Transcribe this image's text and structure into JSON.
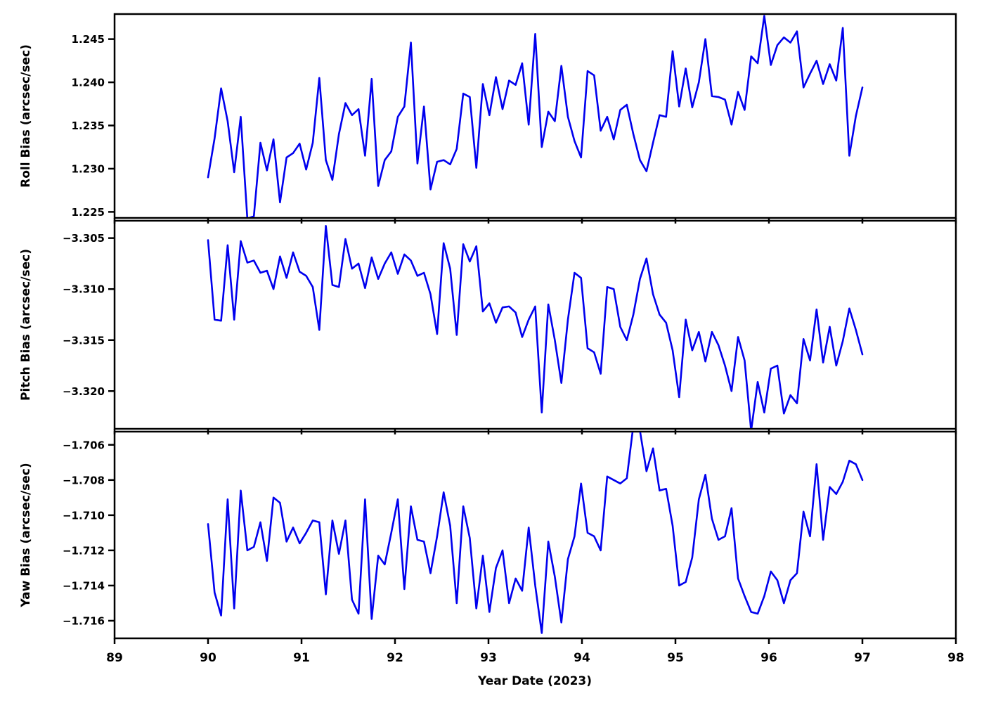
{
  "figure": {
    "background_color": "#ffffff",
    "line_color": "#0000ee",
    "axis_color": "#000000",
    "xlabel": "Year Date (2023)"
  },
  "chart_data": [
    {
      "type": "line",
      "panel": "roll",
      "ylabel": "Roll Bias (arcsec/sec)",
      "legend": "none",
      "grid": false,
      "xlim": [
        89,
        98
      ],
      "ylim": [
        1.2243,
        1.2479
      ],
      "yticks": [
        1.245,
        1.24,
        1.235,
        1.23,
        1.225
      ],
      "ytick_labels": [
        "1.245",
        "1.240",
        "1.235",
        "1.230",
        "1.225"
      ],
      "x_start": 90.0,
      "x_step": 0.07,
      "values": [
        1.229,
        1.2335,
        1.2393,
        1.2355,
        1.2296,
        1.236,
        1.2242,
        1.2245,
        1.233,
        1.2298,
        1.2334,
        1.2261,
        1.2313,
        1.2318,
        1.2329,
        1.2299,
        1.233,
        1.2405,
        1.231,
        1.2287,
        1.234,
        1.2376,
        1.2362,
        1.2369,
        1.2315,
        1.2404,
        1.228,
        1.231,
        1.232,
        1.236,
        1.2372,
        1.2446,
        1.2306,
        1.2372,
        1.2276,
        1.2308,
        1.231,
        1.2305,
        1.2323,
        1.2387,
        1.2383,
        1.2301,
        1.2398,
        1.2362,
        1.2406,
        1.2369,
        1.2402,
        1.2397,
        1.2422,
        1.2351,
        1.2456,
        1.2325,
        1.2366,
        1.2355,
        1.2419,
        1.236,
        1.2332,
        1.2313,
        1.2413,
        1.2408,
        1.2344,
        1.236,
        1.2334,
        1.2368,
        1.2374,
        1.234,
        1.231,
        1.2297,
        1.233,
        1.2362,
        1.236,
        1.2436,
        1.2372,
        1.2416,
        1.2371,
        1.24,
        1.245,
        1.2384,
        1.2383,
        1.238,
        1.2351,
        1.2389,
        1.2368,
        1.243,
        1.2422,
        1.2477,
        1.242,
        1.2443,
        1.2452,
        1.2446,
        1.2459,
        1.2394,
        1.241,
        1.2425,
        1.2398,
        1.2421,
        1.2402,
        1.2463,
        1.2315,
        1.2361,
        1.2394
      ]
    },
    {
      "type": "line",
      "panel": "pitch",
      "ylabel": "Pitch Bias (arcsec/sec)",
      "legend": "none",
      "grid": false,
      "xlim": [
        89,
        98
      ],
      "ylim": [
        -3.3237,
        -3.3033
      ],
      "yticks": [
        -3.305,
        -3.31,
        -3.315,
        -3.32
      ],
      "ytick_labels": [
        "−3.305",
        "−3.310",
        "−3.315",
        "−3.320"
      ],
      "x_start": 90.0,
      "x_step": 0.07,
      "values": [
        -3.3052,
        -3.313,
        -3.3131,
        -3.3057,
        -3.313,
        -3.3053,
        -3.3074,
        -3.3072,
        -3.3084,
        -3.3082,
        -3.31,
        -3.3068,
        -3.3089,
        -3.3064,
        -3.3083,
        -3.3087,
        -3.3098,
        -3.314,
        -3.3038,
        -3.3096,
        -3.3098,
        -3.3051,
        -3.308,
        -3.3075,
        -3.3099,
        -3.3069,
        -3.309,
        -3.3075,
        -3.3064,
        -3.3085,
        -3.3066,
        -3.3072,
        -3.3087,
        -3.3084,
        -3.3105,
        -3.3144,
        -3.3055,
        -3.308,
        -3.3145,
        -3.3056,
        -3.3073,
        -3.3058,
        -3.3122,
        -3.3114,
        -3.3133,
        -3.3118,
        -3.3117,
        -3.3123,
        -3.3147,
        -3.313,
        -3.3117,
        -3.3221,
        -3.3115,
        -3.315,
        -3.3192,
        -3.313,
        -3.3084,
        -3.3089,
        -3.3158,
        -3.3162,
        -3.3183,
        -3.3098,
        -3.31,
        -3.3137,
        -3.315,
        -3.3125,
        -3.309,
        -3.307,
        -3.3105,
        -3.3125,
        -3.3133,
        -3.316,
        -3.3206,
        -3.313,
        -3.316,
        -3.3142,
        -3.3171,
        -3.3142,
        -3.3155,
        -3.3175,
        -3.32,
        -3.3147,
        -3.317,
        -3.3239,
        -3.3191,
        -3.3221,
        -3.3178,
        -3.3175,
        -3.3222,
        -3.3204,
        -3.3212,
        -3.3149,
        -3.317,
        -3.312,
        -3.3172,
        -3.3137,
        -3.3175,
        -3.3151,
        -3.3119,
        -3.314,
        -3.3164
      ]
    },
    {
      "type": "line",
      "panel": "yaw",
      "ylabel": "Yaw Bias (arcsec/sec)",
      "legend": "none",
      "grid": false,
      "xlim": [
        89,
        98
      ],
      "ylim": [
        -1.717,
        -1.70525
      ],
      "yticks": [
        -1.706,
        -1.708,
        -1.71,
        -1.712,
        -1.714,
        -1.716
      ],
      "ytick_labels": [
        "−1.706",
        "−1.708",
        "−1.710",
        "−1.712",
        "−1.714",
        "−1.716"
      ],
      "x_start": 90.0,
      "x_step": 0.07,
      "values": [
        -1.7105,
        -1.7144,
        -1.7157,
        -1.7091,
        -1.7153,
        -1.7086,
        -1.712,
        -1.7118,
        -1.7104,
        -1.7126,
        -1.709,
        -1.7093,
        -1.7115,
        -1.7107,
        -1.7116,
        -1.711,
        -1.7103,
        -1.7104,
        -1.7145,
        -1.7103,
        -1.7122,
        -1.7103,
        -1.7148,
        -1.7156,
        -1.7091,
        -1.7159,
        -1.7123,
        -1.7128,
        -1.711,
        -1.7091,
        -1.7142,
        -1.7095,
        -1.7114,
        -1.7115,
        -1.7133,
        -1.7112,
        -1.7087,
        -1.7106,
        -1.715,
        -1.7095,
        -1.7113,
        -1.7153,
        -1.7123,
        -1.7155,
        -1.713,
        -1.712,
        -1.715,
        -1.7136,
        -1.7143,
        -1.7107,
        -1.714,
        -1.7167,
        -1.7115,
        -1.7135,
        -1.7161,
        -1.7125,
        -1.7112,
        -1.7082,
        -1.711,
        -1.7112,
        -1.712,
        -1.7078,
        -1.708,
        -1.7082,
        -1.7079,
        -1.7049,
        -1.7052,
        -1.7075,
        -1.7062,
        -1.7086,
        -1.7085,
        -1.7106,
        -1.714,
        -1.7138,
        -1.7124,
        -1.7091,
        -1.7077,
        -1.7102,
        -1.7114,
        -1.7112,
        -1.7096,
        -1.7136,
        -1.7146,
        -1.7155,
        -1.7156,
        -1.7146,
        -1.7132,
        -1.7137,
        -1.715,
        -1.7137,
        -1.7133,
        -1.7098,
        -1.7112,
        -1.7071,
        -1.7114,
        -1.7084,
        -1.7088,
        -1.7081,
        -1.7069,
        -1.7071,
        -1.708
      ]
    }
  ],
  "x_axis": {
    "label": "Year Date (2023)",
    "ticks": [
      89,
      90,
      91,
      92,
      93,
      94,
      95,
      96,
      97,
      98
    ],
    "tick_labels": [
      "89",
      "90",
      "91",
      "92",
      "93",
      "94",
      "95",
      "96",
      "97",
      "98"
    ]
  }
}
